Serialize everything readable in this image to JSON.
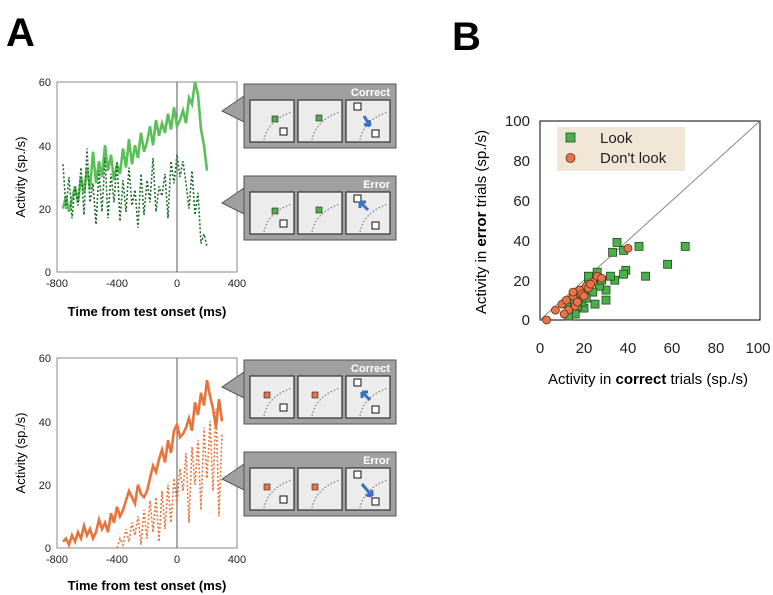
{
  "figure": {
    "letter_a": "A",
    "letter_b": "B"
  },
  "colors": {
    "look": "#5cc05a",
    "look_dark": "#1f6b2a",
    "look_marker": "#4fae4c",
    "dont_look": "#e8743c",
    "dont_look_marker": "#e8754a",
    "box_fill": "#a0a0a0",
    "box_edge": "#555555",
    "arrow": "#3a6fc2"
  },
  "boxes": {
    "correct": "Correct",
    "error": "Error"
  },
  "chart_data": [
    {
      "type": "line",
      "panel": "A-top",
      "xlabel": "Time from test onset (ms)",
      "ylabel": "Activity (sp./s)",
      "xlim": [
        -800,
        400
      ],
      "ylim": [
        0,
        60
      ],
      "xticks": [
        "-800",
        "-400",
        "0",
        "400"
      ],
      "yticks": [
        "0",
        "20",
        "40",
        "60"
      ],
      "vline_at": 0,
      "series": [
        {
          "style": "solid",
          "color": "#5cc05a",
          "x": [
            -760,
            -740,
            -720,
            -700,
            -680,
            -660,
            -640,
            -620,
            -600,
            -580,
            -560,
            -540,
            -520,
            -500,
            -480,
            -460,
            -440,
            -420,
            -400,
            -380,
            -360,
            -340,
            -320,
            -300,
            -280,
            -260,
            -240,
            -220,
            -200,
            -180,
            -160,
            -140,
            -120,
            -100,
            -80,
            -60,
            -40,
            -20,
            0,
            20,
            40,
            60,
            80,
            100,
            120,
            140,
            160,
            180,
            200
          ],
          "y": [
            20,
            24,
            19,
            23,
            27,
            22,
            30,
            25,
            33,
            26,
            38,
            28,
            35,
            30,
            40,
            32,
            37,
            29,
            34,
            31,
            39,
            33,
            42,
            34,
            40,
            36,
            44,
            38,
            41,
            46,
            40,
            48,
            43,
            47,
            44,
            50,
            45,
            52,
            46,
            48,
            51,
            47,
            55,
            53,
            60,
            56,
            45,
            40,
            32
          ]
        },
        {
          "style": "dotted",
          "color": "#1f6b2a",
          "x": [
            -760,
            -740,
            -720,
            -700,
            -680,
            -660,
            -640,
            -620,
            -600,
            -580,
            -560,
            -540,
            -520,
            -500,
            -480,
            -460,
            -440,
            -420,
            -400,
            -380,
            -360,
            -340,
            -320,
            -300,
            -280,
            -260,
            -240,
            -220,
            -200,
            -180,
            -160,
            -140,
            -120,
            -100,
            -80,
            -60,
            -40,
            -20,
            0,
            20,
            40,
            60,
            80,
            100,
            120,
            140,
            160,
            180,
            200
          ],
          "y": [
            34,
            20,
            30,
            17,
            27,
            21,
            33,
            18,
            39,
            22,
            28,
            15,
            32,
            19,
            36,
            17,
            31,
            22,
            35,
            16,
            29,
            19,
            33,
            21,
            26,
            14,
            31,
            18,
            29,
            22,
            36,
            19,
            27,
            24,
            31,
            17,
            35,
            28,
            37,
            30,
            35,
            28,
            20,
            32,
            18,
            25,
            9,
            12,
            8
          ]
        }
      ]
    },
    {
      "type": "line",
      "panel": "A-bottom",
      "xlabel": "Time from test onset (ms)",
      "ylabel": "Activity (sp./s)",
      "xlim": [
        -800,
        400
      ],
      "ylim": [
        0,
        60
      ],
      "xticks": [
        "-800",
        "-400",
        "0",
        "400"
      ],
      "yticks": [
        "0",
        "20",
        "40",
        "60"
      ],
      "vline_at": 0,
      "series": [
        {
          "style": "solid",
          "color": "#e8743c",
          "x": [
            -760,
            -740,
            -720,
            -700,
            -680,
            -660,
            -640,
            -620,
            -600,
            -580,
            -560,
            -540,
            -520,
            -500,
            -480,
            -460,
            -440,
            -420,
            -400,
            -380,
            -360,
            -340,
            -320,
            -300,
            -280,
            -260,
            -240,
            -220,
            -200,
            -180,
            -160,
            -140,
            -120,
            -100,
            -80,
            -60,
            -40,
            -20,
            0,
            20,
            40,
            60,
            80,
            100,
            120,
            140,
            160,
            180,
            200,
            220,
            240,
            260,
            280,
            300
          ],
          "y": [
            2,
            3,
            1,
            4,
            2,
            5,
            3,
            7,
            4,
            6,
            3,
            5,
            9,
            6,
            8,
            5,
            11,
            8,
            13,
            10,
            12,
            15,
            18,
            16,
            14,
            20,
            17,
            16,
            18,
            22,
            26,
            24,
            28,
            31,
            27,
            34,
            30,
            37,
            39,
            35,
            36,
            38,
            41,
            37,
            46,
            42,
            49,
            45,
            53,
            48,
            44,
            38,
            47,
            40
          ]
        },
        {
          "style": "dotted",
          "color": "#e8743c",
          "x": [
            -400,
            -380,
            -360,
            -340,
            -320,
            -300,
            -280,
            -260,
            -240,
            -220,
            -200,
            -180,
            -160,
            -140,
            -120,
            -100,
            -80,
            -60,
            -40,
            -20,
            0,
            20,
            40,
            60,
            80,
            100,
            120,
            140,
            160,
            180,
            200,
            220,
            240,
            260,
            280,
            300
          ],
          "y": [
            0,
            3,
            1,
            6,
            2,
            8,
            4,
            10,
            1,
            12,
            3,
            15,
            5,
            16,
            2,
            18,
            6,
            20,
            8,
            22,
            14,
            25,
            18,
            30,
            8,
            32,
            20,
            34,
            12,
            38,
            22,
            40,
            18,
            44,
            10,
            36
          ]
        }
      ]
    },
    {
      "type": "scatter",
      "panel": "B",
      "xlabel_pre": "Activity in ",
      "xlabel_bold": "correct",
      "xlabel_post": " trials (sp./s)",
      "ylabel_pre": "Activity in ",
      "ylabel_bold": "error",
      "ylabel_post": " trials (sp./s)",
      "xlim": [
        0,
        100
      ],
      "ylim": [
        0,
        100
      ],
      "xticks": [
        "0",
        "20",
        "40",
        "60",
        "80",
        "100"
      ],
      "yticks": [
        "0",
        "20",
        "40",
        "60",
        "80",
        "100"
      ],
      "diagonal": true,
      "legend": {
        "placement": "top-left"
      },
      "series": [
        {
          "name": "Look",
          "marker": "square",
          "color": "#4fae4c",
          "points": [
            [
              33,
              34
            ],
            [
              35,
              39
            ],
            [
              38,
              35
            ],
            [
              39,
              25
            ],
            [
              38,
              23
            ],
            [
              45,
              37
            ],
            [
              48,
              22
            ],
            [
              58,
              28
            ],
            [
              66,
              37
            ],
            [
              30,
              15
            ],
            [
              34,
              20
            ],
            [
              25,
              20
            ],
            [
              27,
              17
            ],
            [
              22,
              18
            ],
            [
              20,
              15
            ],
            [
              18,
              12
            ],
            [
              15,
              10
            ],
            [
              12,
              8
            ],
            [
              14,
              5
            ],
            [
              16,
              3
            ],
            [
              20,
              6
            ],
            [
              25,
              8
            ],
            [
              30,
              10
            ],
            [
              22,
              22
            ],
            [
              28,
              20
            ],
            [
              26,
              24
            ],
            [
              19,
              9
            ],
            [
              17,
              7
            ],
            [
              13,
              2
            ],
            [
              24,
              14
            ],
            [
              21,
              11
            ],
            [
              32,
              22
            ]
          ]
        },
        {
          "name": "Don't look",
          "marker": "circle",
          "color": "#e8754a",
          "points": [
            [
              3,
              0
            ],
            [
              7,
              5
            ],
            [
              10,
              8
            ],
            [
              12,
              10
            ],
            [
              13,
              5
            ],
            [
              15,
              12
            ],
            [
              16,
              7
            ],
            [
              18,
              15
            ],
            [
              19,
              13
            ],
            [
              21,
              17
            ],
            [
              22,
              16
            ],
            [
              24,
              19
            ],
            [
              26,
              22
            ],
            [
              28,
              21
            ],
            [
              40,
              36
            ],
            [
              17,
              9
            ],
            [
              11,
              3
            ],
            [
              20,
              12
            ],
            [
              23,
              18
            ],
            [
              15,
              14
            ]
          ]
        }
      ]
    }
  ]
}
